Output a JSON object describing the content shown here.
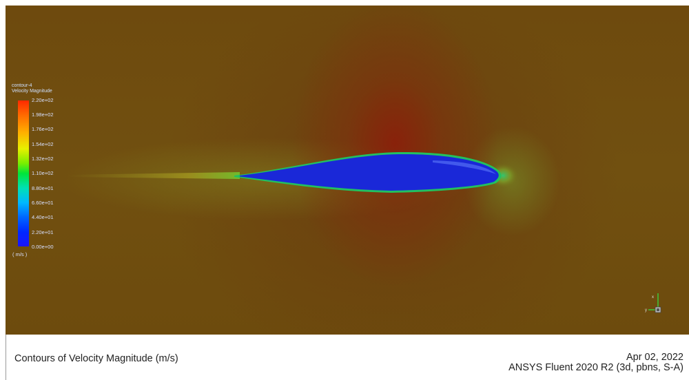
{
  "legend": {
    "name": "contour-4",
    "variable": "Velocity Magnitude",
    "units": "( m/s )",
    "ticks": [
      "2.20e+02",
      "1.98e+02",
      "1.76e+02",
      "1.54e+02",
      "1.32e+02",
      "1.10e+02",
      "8.80e+01",
      "6.60e+01",
      "4.40e+01",
      "2.20e+01",
      "0.00e+00"
    ],
    "colors_top_to_bottom": [
      "#ff2a00",
      "#ffb000",
      "#e8f000",
      "#00e53a",
      "#00b8ff",
      "#0028ff",
      "#1a14ff"
    ]
  },
  "view": {
    "background_color": "#6e4a0c",
    "body_color": "#1a28d8",
    "axis_labels": [
      "x",
      "y"
    ]
  },
  "caption": {
    "title": "Contours of Velocity Magnitude (m/s)",
    "date": "Apr 02, 2022",
    "product": "ANSYS Fluent 2020 R2 (3d, pbns, S-A)"
  }
}
